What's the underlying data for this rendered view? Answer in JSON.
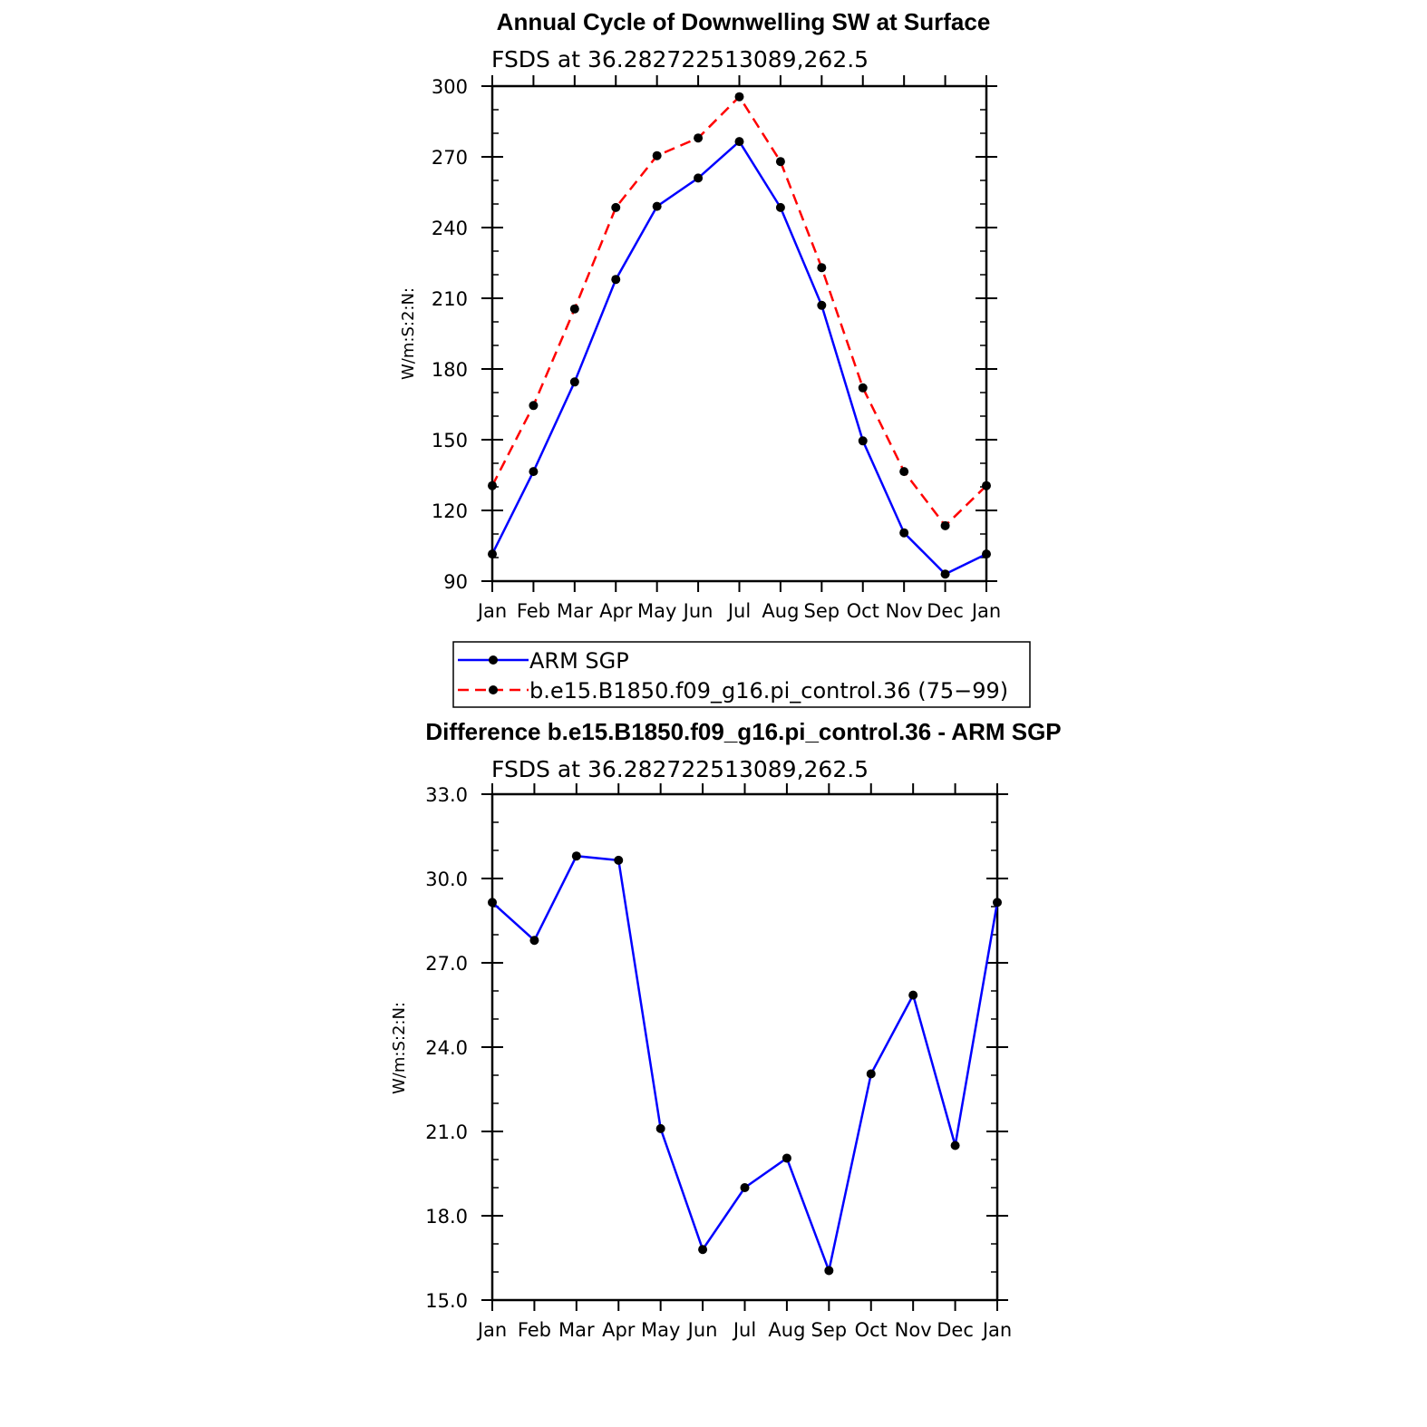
{
  "chart_data": [
    {
      "type": "line",
      "title": "Annual Cycle of Downwelling SW at Surface",
      "subtitle": "FSDS at 36.282722513089,262.5",
      "ylabel": "W/m:S:2:N:",
      "xlabel": "",
      "categories": [
        "Jan",
        "Feb",
        "Mar",
        "Apr",
        "May",
        "Jun",
        "Jul",
        "Aug",
        "Sep",
        "Oct",
        "Nov",
        "Dec",
        "Jan"
      ],
      "ylim": [
        90,
        300
      ],
      "yticks": [
        "90",
        "120",
        "150",
        "180",
        "210",
        "240",
        "270",
        "300"
      ],
      "grid": false,
      "legend": "below",
      "series": [
        {
          "name": "ARM SGP",
          "color": "#0000ff",
          "dash": "solid",
          "values": [
            101.5,
            136.5,
            174.5,
            218,
            249,
            261,
            276.5,
            248.5,
            207,
            149.5,
            110.5,
            93,
            101.5
          ]
        },
        {
          "name": "b.e15.B1850.f09_g16.pi_control.36 (75−99)",
          "color": "#ff0000",
          "dash": "dashed",
          "values": [
            130.5,
            164.5,
            205.5,
            248.5,
            270.5,
            278,
            295.5,
            268,
            223,
            172,
            136.5,
            113.5,
            130.5
          ]
        }
      ]
    },
    {
      "type": "line",
      "title": "Difference b.e15.B1850.f09_g16.pi_control.36 - ARM SGP",
      "subtitle": "FSDS at 36.282722513089,262.5",
      "ylabel": "W/m:S:2:N:",
      "xlabel": "",
      "categories": [
        "Jan",
        "Feb",
        "Mar",
        "Apr",
        "May",
        "Jun",
        "Jul",
        "Aug",
        "Sep",
        "Oct",
        "Nov",
        "Dec",
        "Jan"
      ],
      "ylim": [
        15,
        33
      ],
      "yticks": [
        "15.0",
        "18.0",
        "21.0",
        "24.0",
        "27.0",
        "30.0",
        "33.0"
      ],
      "grid": false,
      "series": [
        {
          "color": "#0000ff",
          "dash": "solid",
          "values": [
            29.15,
            27.8,
            30.8,
            30.65,
            21.1,
            16.8,
            19.0,
            20.05,
            16.05,
            23.05,
            25.85,
            20.5,
            29.15
          ]
        }
      ]
    }
  ]
}
